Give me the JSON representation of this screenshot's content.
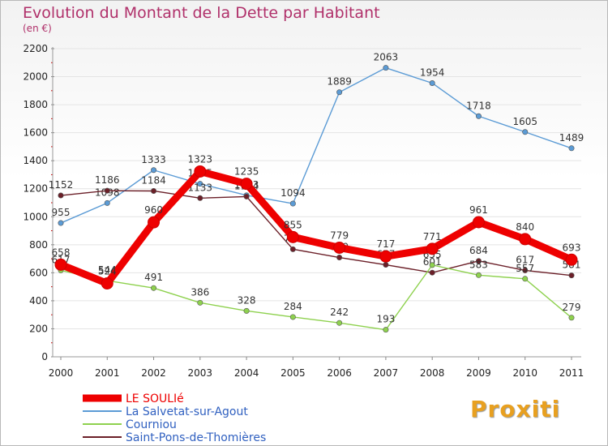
{
  "chart_data": {
    "type": "line",
    "title": "Evolution du Montant de la Dette par Habitant",
    "subtitle": "(en €)",
    "categories": [
      "2000",
      "2001",
      "2002",
      "2003",
      "2004",
      "2005",
      "2006",
      "2007",
      "2008",
      "2009",
      "2010",
      "2011"
    ],
    "ylim": [
      0,
      2200
    ],
    "yticks": [
      0,
      200,
      400,
      600,
      800,
      1000,
      1200,
      1400,
      1600,
      1800,
      2000,
      2200
    ],
    "series": [
      {
        "name": "La Salvetat-sur-Agout",
        "color": "#5b9bd5",
        "values": [
          955,
          1098,
          1333,
          1235,
          1153,
          1094,
          1889,
          2063,
          1954,
          1718,
          1605,
          1489
        ]
      },
      {
        "name": "Saint-Pons-de-Thomières",
        "color": "#6b1f28",
        "values": [
          1152,
          1186,
          1184,
          1133,
          1144,
          768,
          709,
          657,
          601,
          684,
          617,
          581
        ]
      },
      {
        "name": "Courniou",
        "color": "#8ed14e",
        "values": [
          617,
          544,
          491,
          386,
          328,
          284,
          242,
          193,
          655,
          583,
          557,
          279
        ]
      },
      {
        "name": "LE SOULIé",
        "color": "#ee0000",
        "values": [
          658,
          524,
          960,
          1323,
          1235,
          855,
          779,
          717,
          771,
          961,
          840,
          693
        ]
      }
    ],
    "legend": [
      "LE SOULIé",
      "La Salvetat-sur-Agout",
      "Courniou",
      "Saint-Pons-de-Thomières"
    ]
  },
  "legend_colors": {
    "LE SOULIé": "#ee0000",
    "La Salvetat-sur-Agout": "#5b9bd5",
    "Courniou": "#8ed14e",
    "Saint-Pons-de-Thomières": "#6b1f28"
  },
  "logo": {
    "text": "Proxiti"
  }
}
